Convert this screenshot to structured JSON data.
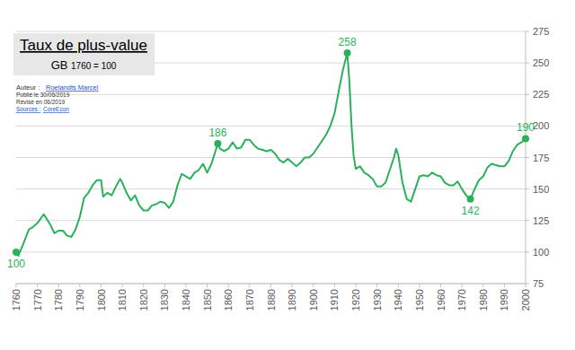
{
  "chart_data": {
    "type": "line",
    "title": "Taux de plus-value",
    "subtitle": "GB 1760 = 100",
    "credits": {
      "author_label": "Auteur :",
      "author": "Roelandts Marcel",
      "published": "Publié le 30/06/2019",
      "revised": "Révisé en 06/2019",
      "sources_label": "Sources :",
      "sources": "CoreEcon"
    },
    "color": "#2bb05c",
    "grid": true,
    "x": [
      1760,
      1761,
      1763,
      1766,
      1768,
      1770,
      1773,
      1776,
      1778,
      1780,
      1782,
      1784,
      1786,
      1788,
      1790,
      1792,
      1794,
      1796,
      1798,
      1800,
      1801,
      1803,
      1805,
      1807,
      1809,
      1810,
      1812,
      1814,
      1816,
      1818,
      1820,
      1822,
      1824,
      1826,
      1828,
      1830,
      1832,
      1834,
      1836,
      1838,
      1840,
      1842,
      1844,
      1846,
      1848,
      1850,
      1852,
      1855,
      1856,
      1858,
      1860,
      1862,
      1864,
      1866,
      1868,
      1870,
      1872,
      1874,
      1876,
      1878,
      1880,
      1882,
      1884,
      1886,
      1888,
      1890,
      1892,
      1894,
      1896,
      1898,
      1900,
      1902,
      1904,
      1906,
      1908,
      1910,
      1912,
      1914,
      1916,
      1917,
      1918,
      1919,
      1920,
      1922,
      1924,
      1926,
      1928,
      1930,
      1932,
      1934,
      1936,
      1938,
      1939,
      1940,
      1942,
      1944,
      1946,
      1948,
      1950,
      1952,
      1954,
      1956,
      1958,
      1960,
      1962,
      1964,
      1966,
      1968,
      1970,
      1972,
      1974,
      1976,
      1978,
      1980,
      1982,
      1984,
      1986,
      1988,
      1990,
      1992,
      1994,
      1996,
      1998,
      2000
    ],
    "values": [
      100,
      97,
      105,
      118,
      120,
      123,
      130,
      122,
      115,
      117,
      117,
      113,
      112,
      118,
      128,
      143,
      147,
      153,
      157,
      157,
      144,
      147,
      145,
      152,
      158,
      155,
      147,
      141,
      145,
      137,
      133,
      133,
      137,
      138,
      140,
      139,
      135,
      140,
      153,
      162,
      160,
      158,
      163,
      165,
      170,
      163,
      170,
      186,
      182,
      180,
      182,
      187,
      182,
      183,
      189,
      189,
      185,
      182,
      181,
      180,
      181,
      178,
      173,
      171,
      174,
      171,
      168,
      171,
      175,
      175,
      178,
      183,
      188,
      193,
      200,
      210,
      228,
      245,
      258,
      235,
      200,
      176,
      166,
      168,
      163,
      161,
      158,
      152,
      152,
      155,
      165,
      175,
      182,
      177,
      155,
      142,
      140,
      150,
      160,
      161,
      160,
      163,
      161,
      160,
      155,
      153,
      153,
      156,
      150,
      145,
      142,
      150,
      157,
      160,
      167,
      170,
      169,
      168,
      168,
      172,
      180,
      185,
      187,
      190
    ],
    "xlim": [
      1760,
      2000
    ],
    "xticks": [
      1760,
      1770,
      1780,
      1790,
      1800,
      1810,
      1820,
      1830,
      1840,
      1850,
      1860,
      1870,
      1880,
      1890,
      1900,
      1910,
      1920,
      1930,
      1940,
      1950,
      1960,
      1970,
      1980,
      1990,
      2000
    ],
    "ylim": [
      75,
      275
    ],
    "yticks": [
      75,
      100,
      125,
      150,
      175,
      200,
      225,
      250,
      275
    ],
    "annotations": [
      {
        "text": "100",
        "x": 1760,
        "y": 100
      },
      {
        "text": "186",
        "x": 1855,
        "y": 186
      },
      {
        "text": "258",
        "x": 1916,
        "y": 258
      },
      {
        "text": "142",
        "x": 1974,
        "y": 142
      },
      {
        "text": "190",
        "x": 2000,
        "y": 190
      }
    ]
  }
}
